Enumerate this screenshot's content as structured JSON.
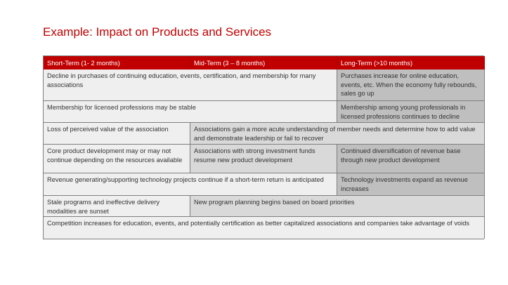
{
  "title": "Example: Impact on Products and Services",
  "table": {
    "headers": [
      "Short-Term (1- 2 months)",
      "Mid-Term (3 – 8 months)",
      "Long-Term (>10 months)"
    ],
    "rows": [
      {
        "short_mid": "Decline in purchases of continuing education, events, certification, and membership for many associations",
        "long": "Purchases increase for online education, events, etc. When the economy fully rebounds, sales go up"
      },
      {
        "short_mid": "Membership for licensed professions may be stable",
        "long": "Membership among young professionals in licensed professions continues to decline"
      },
      {
        "short": "Loss of perceived value of the association",
        "mid_long": "Associations gain a more acute understanding of member needs and determine how to add value and demonstrate leadership or fail to recover"
      },
      {
        "short": "Core product development may or may not continue depending on the resources available",
        "mid": "Associations with strong investment funds resume new product development",
        "long": "Continued diversification of revenue base through new product development"
      },
      {
        "short_mid": "Revenue generating/supporting technology projects continue if a short-term return is anticipated",
        "long": "Technology investments expand as revenue increases"
      },
      {
        "short": "Stale programs and ineffective delivery modalities are sunset",
        "mid_long": "New program planning begins based on board priorities"
      },
      {
        "all": "Competition increases for education, events, and potentially certification as better capitalized associations and companies take advantage of voids"
      }
    ]
  },
  "colors": {
    "accent": "#c00000",
    "short_cell": "#efefef",
    "mid_cell": "#d9d9d9",
    "long_cell": "#bfbfbf"
  }
}
